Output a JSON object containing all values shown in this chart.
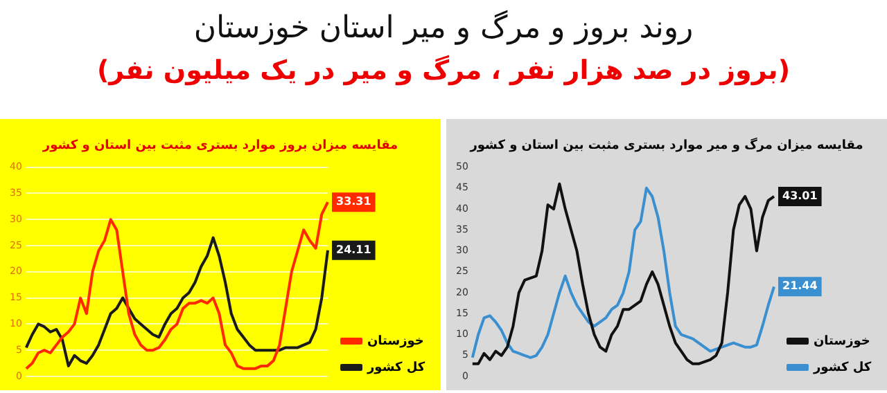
{
  "chart_data": [
    {
      "type": "line",
      "title": "مقایسه میزان بروز موارد بستری مثبت بین استان و کشور",
      "annotations": [
        "روند بروز و مرگ و میر استان خوزستان",
        "(بروز در صد هزار نفر ، مرگ و میر در یک میلیون نفر)"
      ],
      "categories": [
        null,
        null,
        null,
        null,
        null,
        null,
        null,
        null,
        null,
        null,
        null,
        null,
        null,
        null,
        null,
        null,
        null,
        null,
        null,
        null,
        null,
        null,
        null,
        null,
        null,
        null,
        null,
        null,
        null,
        null,
        null,
        null,
        null,
        null,
        null,
        null,
        null,
        null,
        null,
        null,
        null,
        null,
        null,
        null,
        null,
        null,
        null,
        null,
        null,
        null,
        null
      ],
      "ylim": [
        0,
        40
      ],
      "yticks": [
        0,
        5,
        10,
        15,
        20,
        25,
        30,
        35,
        40
      ],
      "grid": "y",
      "legend": "bottom right",
      "marker": "none",
      "line_style": "solid",
      "tick_labels": "y",
      "series": [
        {
          "name": "خوزستان",
          "color": "#ff2a00",
          "values": [
            1.5,
            2.5,
            4.5,
            5,
            4.5,
            6,
            7.5,
            8.5,
            10,
            15,
            12,
            20,
            24,
            26,
            30,
            28,
            20,
            12,
            8,
            6,
            5,
            5,
            5.5,
            7,
            9,
            10,
            13,
            14,
            14,
            14.5,
            14,
            15,
            12,
            6,
            4.5,
            2,
            1.5,
            1.5,
            1.5,
            2,
            2,
            3,
            6,
            13,
            20,
            24,
            28,
            26,
            24.5,
            31,
            33.31
          ],
          "value_labels": [
            null,
            null,
            null,
            null,
            null,
            null,
            null,
            null,
            null,
            null,
            null,
            null,
            null,
            null,
            null,
            null,
            null,
            null,
            null,
            null,
            null,
            null,
            null,
            null,
            null,
            null,
            null,
            null,
            null,
            null,
            null,
            null,
            null,
            null,
            null,
            null,
            null,
            null,
            null,
            null,
            null,
            null,
            null,
            null,
            null,
            null,
            null,
            null,
            null,
            null,
            "33.31"
          ]
        },
        {
          "name": "کل کشور",
          "color": "#1a1a1a",
          "values": [
            5.5,
            8,
            10,
            9.5,
            8.5,
            9,
            7,
            2,
            4,
            3,
            2.5,
            4,
            6,
            9,
            12,
            13,
            15,
            13,
            11,
            10,
            9,
            8,
            7.5,
            10,
            12,
            13,
            15,
            16,
            18,
            21,
            23,
            26.5,
            23,
            18,
            12,
            9,
            7.5,
            6,
            5,
            5,
            5,
            5,
            5,
            5.5,
            5.5,
            5.5,
            6,
            6.5,
            9,
            15,
            24.11
          ],
          "value_labels": [
            null,
            null,
            null,
            null,
            null,
            null,
            null,
            null,
            null,
            null,
            null,
            null,
            null,
            null,
            null,
            null,
            null,
            null,
            null,
            null,
            null,
            null,
            null,
            null,
            null,
            null,
            null,
            null,
            null,
            null,
            null,
            null,
            null,
            null,
            null,
            null,
            null,
            null,
            null,
            null,
            null,
            null,
            null,
            null,
            null,
            null,
            null,
            null,
            null,
            null,
            "24.11"
          ]
        }
      ]
    },
    {
      "type": "line",
      "title": "مقایسه میزان مرگ و میر موارد بستری مثبت بین استان و کشور",
      "categories": [
        null,
        null,
        null,
        null,
        null,
        null,
        null,
        null,
        null,
        null,
        null,
        null,
        null,
        null,
        null,
        null,
        null,
        null,
        null,
        null,
        null,
        null,
        null,
        null,
        null,
        null,
        null,
        null,
        null,
        null,
        null,
        null,
        null,
        null,
        null,
        null,
        null,
        null,
        null,
        null,
        null,
        null,
        null,
        null,
        null,
        null,
        null,
        null,
        null,
        null,
        null,
        null,
        null
      ],
      "ylim": [
        0,
        50
      ],
      "yticks": [
        0,
        5,
        10,
        15,
        20,
        25,
        30,
        35,
        40,
        45,
        50
      ],
      "legend": "bottom right",
      "marker": "none",
      "line_style": "solid",
      "tick_labels": "y",
      "series": [
        {
          "name": "خوزستان",
          "color": "#111111",
          "values": [
            3,
            3,
            5.5,
            4,
            6,
            5,
            7,
            12,
            20,
            23,
            23.5,
            24,
            30,
            41,
            40,
            46,
            40,
            35,
            30,
            22,
            15,
            10,
            7,
            6,
            10,
            12,
            16,
            16,
            17,
            18,
            22,
            25,
            22,
            17,
            12,
            8,
            6,
            4,
            3,
            3,
            3.5,
            4,
            5,
            8,
            20,
            35,
            41,
            43,
            40,
            30,
            38,
            42,
            43.01
          ],
          "value_labels": [
            null,
            null,
            null,
            null,
            null,
            null,
            null,
            null,
            null,
            null,
            null,
            null,
            null,
            null,
            null,
            null,
            null,
            null,
            null,
            null,
            null,
            null,
            null,
            null,
            null,
            null,
            null,
            null,
            null,
            null,
            null,
            null,
            null,
            null,
            null,
            null,
            null,
            null,
            null,
            null,
            null,
            null,
            null,
            null,
            null,
            null,
            null,
            null,
            null,
            null,
            null,
            null,
            "43.01"
          ]
        },
        {
          "name": "کل کشور",
          "color": "#3a8fd0",
          "values": [
            4.5,
            10,
            14,
            14.5,
            13,
            11,
            8,
            6,
            5.5,
            5,
            4.5,
            5,
            7,
            10,
            15,
            20,
            24,
            20,
            17,
            15,
            13,
            12,
            13,
            14,
            16,
            17,
            20,
            25,
            35,
            37,
            45,
            43,
            38,
            30,
            20,
            12,
            10,
            9.5,
            9,
            8,
            7,
            6,
            6.5,
            7,
            7.5,
            8,
            7.5,
            7,
            7,
            7.5,
            12,
            17,
            21.44
          ],
          "value_labels": [
            null,
            null,
            null,
            null,
            null,
            null,
            null,
            null,
            null,
            null,
            null,
            null,
            null,
            null,
            null,
            null,
            null,
            null,
            null,
            null,
            null,
            null,
            null,
            null,
            null,
            null,
            null,
            null,
            null,
            null,
            null,
            null,
            null,
            null,
            null,
            null,
            null,
            null,
            null,
            null,
            null,
            null,
            null,
            null,
            null,
            null,
            null,
            null,
            null,
            null,
            null,
            null,
            "21.44"
          ]
        }
      ]
    }
  ]
}
